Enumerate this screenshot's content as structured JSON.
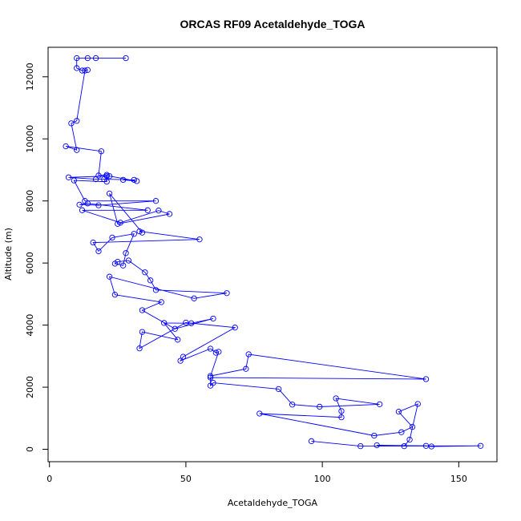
{
  "chart_data": {
    "type": "line",
    "title": "ORCAS RF09 Acetaldehyde_TOGA",
    "xlabel": "Acetaldehyde_TOGA",
    "ylabel": "Altitude (m)",
    "xlim": [
      -0.5,
      164
    ],
    "ylim": [
      -400,
      12950
    ],
    "xticks": [
      0,
      50,
      100,
      150
    ],
    "yticks": [
      0,
      2000,
      4000,
      6000,
      8000,
      10000,
      12000
    ],
    "grid": false,
    "legend": "none",
    "markers": "open-circle",
    "color": "#0000ff",
    "series": [
      {
        "x": [
          28,
          17,
          14,
          10,
          10,
          12,
          14,
          13,
          10,
          8,
          10,
          6,
          19,
          18,
          21,
          22,
          32,
          27,
          31,
          20,
          17,
          7,
          21,
          21,
          9,
          13,
          39,
          18,
          11,
          14,
          36,
          12,
          26,
          40,
          44,
          25,
          22,
          34,
          33,
          55,
          16,
          18,
          23,
          31,
          28,
          27,
          24,
          25,
          29,
          35,
          37,
          39,
          65,
          53,
          22,
          24,
          41,
          34,
          46,
          60,
          52,
          42,
          47,
          34,
          33,
          50,
          68,
          49,
          48,
          59,
          61,
          62,
          59,
          72,
          73,
          138,
          59,
          59,
          60,
          84,
          89,
          99,
          121,
          105,
          107,
          107,
          77,
          119,
          129,
          133,
          128,
          135,
          132,
          130,
          120,
          138,
          140,
          158,
          114,
          96
        ],
        "y": [
          12600,
          12600,
          12600,
          12600,
          12280,
          12200,
          12220,
          12200,
          10580,
          10500,
          9640,
          9760,
          9600,
          8820,
          8840,
          8800,
          8640,
          8680,
          8680,
          8700,
          8700,
          8760,
          8800,
          8620,
          8660,
          8000,
          8000,
          7860,
          7880,
          7920,
          7700,
          7700,
          7300,
          7690,
          7580,
          7260,
          8240,
          6980,
          7020,
          6760,
          6660,
          6380,
          6820,
          6940,
          6320,
          5920,
          5980,
          6040,
          6080,
          5700,
          5440,
          5130,
          5030,
          4860,
          5560,
          4980,
          4740,
          4480,
          3880,
          4210,
          4060,
          4070,
          3530,
          3780,
          3250,
          4080,
          3920,
          2980,
          2850,
          3240,
          3110,
          3140,
          2360,
          2590,
          3060,
          2260,
          2310,
          2050,
          2140,
          1940,
          1440,
          1370,
          1450,
          1640,
          1230,
          1030,
          1150,
          440,
          550,
          720,
          1210,
          1460,
          310,
          100,
          130,
          110,
          90,
          110,
          100,
          260
        ]
      }
    ]
  }
}
